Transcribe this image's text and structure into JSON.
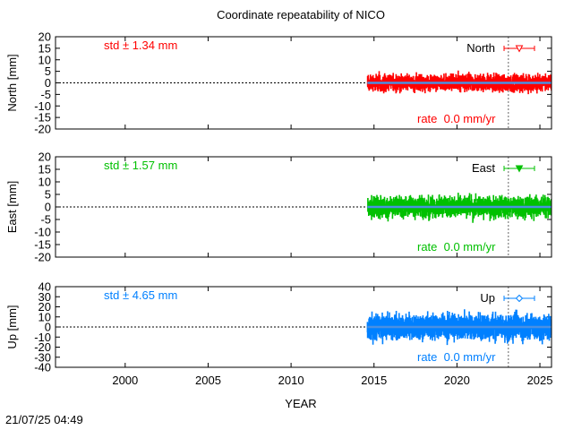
{
  "chart_data": {
    "type": "scatter",
    "title": "Coordinate repeatability of NICO",
    "xlabel": "YEAR",
    "xlim": [
      1995.8,
      2025.7
    ],
    "xticks": [
      2000,
      2005,
      2010,
      2015,
      2020,
      2025
    ],
    "event_line_year": 2023.1,
    "data_span": {
      "start": 2014.6,
      "end": 2025.7
    },
    "panels": [
      {
        "key": "north",
        "ylabel": "North [mm]",
        "ylim": [
          -20,
          20
        ],
        "yticks": [
          -20,
          -15,
          -10,
          -5,
          0,
          5,
          10,
          15,
          20
        ],
        "color": "#ff0000",
        "legend": "North",
        "legend_marker": "triangle-down-open",
        "std_text": "std ± 1.34 mm",
        "std_mm": 1.34,
        "rate_text": "rate  0.0 mm/yr",
        "rate_mm_per_yr": 0.0
      },
      {
        "key": "east",
        "ylabel": "East [mm]",
        "ylim": [
          -20,
          20
        ],
        "yticks": [
          -20,
          -15,
          -10,
          -5,
          0,
          5,
          10,
          15,
          20
        ],
        "color": "#00c000",
        "legend": "East",
        "legend_marker": "triangle-down-filled",
        "std_text": "std ± 1.57 mm",
        "std_mm": 1.57,
        "rate_text": "rate  0.0 mm/yr",
        "rate_mm_per_yr": 0.0
      },
      {
        "key": "up",
        "ylabel": "Up [mm]",
        "ylim": [
          -40,
          40
        ],
        "yticks": [
          -40,
          -30,
          -20,
          -10,
          0,
          10,
          20,
          30,
          40
        ],
        "color": "#0080ff",
        "legend": "Up",
        "legend_marker": "diamond-open",
        "std_text": "std ± 4.65 mm",
        "std_mm": 4.65,
        "rate_text": "rate  0.0 mm/yr",
        "rate_mm_per_yr": 0.0
      }
    ]
  },
  "timestamp": "21/07/25 04:49"
}
